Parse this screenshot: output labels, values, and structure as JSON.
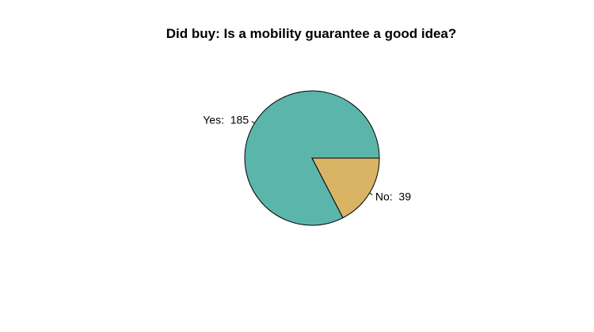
{
  "chart_data": {
    "type": "pie",
    "title": "Did buy: Is a mobility guarantee a good idea?",
    "slices": [
      {
        "label": "Yes",
        "value": 185,
        "display": "Yes:  185",
        "color": "#5bb5ab"
      },
      {
        "label": "No",
        "value": 39,
        "display": "No:  39",
        "color": "#d9b465"
      }
    ],
    "start_angle_deg": 0,
    "direction": "counterclockwise",
    "border_color": "#000000"
  }
}
